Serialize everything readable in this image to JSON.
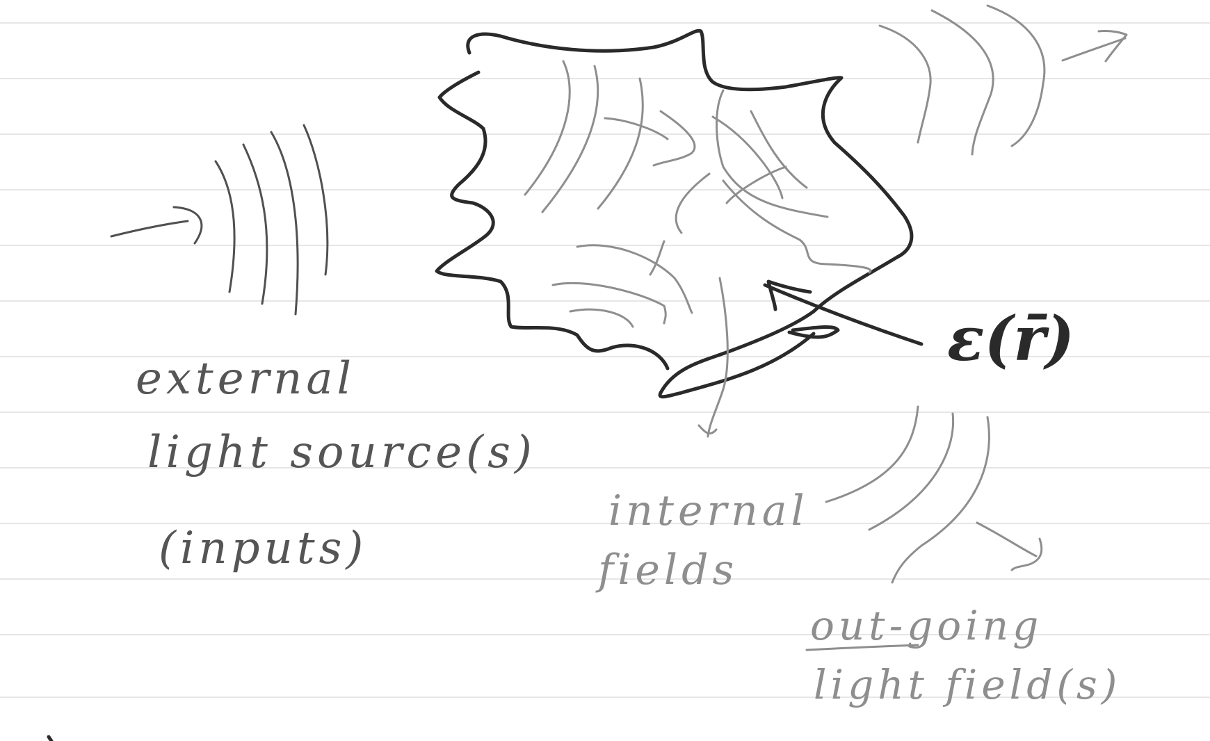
{
  "labels": {
    "external_line1": "external",
    "external_line2": "light source(s)",
    "external_line3": "(inputs)",
    "internal_line1": "internal",
    "internal_line2": "fields",
    "outgoing_line1": "out-going",
    "outgoing_line2": "light field(s)",
    "epsilon": "ε(r̄)"
  },
  "colors": {
    "paper": "#ffffff",
    "rule_line": "#e6e6e6",
    "ink_dark": "#2a2a2a",
    "ink_mid": "#505050",
    "ink_light": "#8e8e8e"
  }
}
